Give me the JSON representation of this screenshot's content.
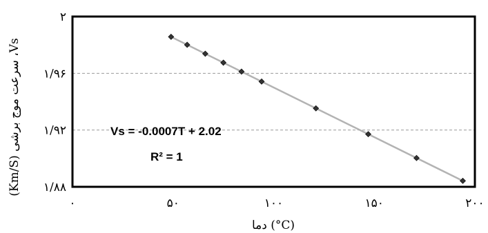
{
  "chart_data": {
    "type": "scatter",
    "xlabel": "دما (°C)",
    "ylabel": "(Km/S) سرعت موج برشی ،Vs",
    "x_ticks": [
      "۰",
      "۵۰",
      "۱۰۰",
      "۱۵۰",
      "۲۰۰"
    ],
    "y_ticks": [
      "۲",
      "۱/۹۶",
      "۱/۹۲",
      "۱/۸۸"
    ],
    "xlim": [
      0,
      200
    ],
    "ylim": [
      1.88,
      2.0
    ],
    "grid": "horizontal dashed at y ticks",
    "equation_lines": [
      "Vs = -0.0007T + 2.02",
      "R² = 1"
    ],
    "x": [
      49,
      57,
      66,
      75,
      84,
      94,
      121,
      147,
      171,
      194
    ],
    "y": [
      1.9857,
      1.9801,
      1.9738,
      1.9675,
      1.9612,
      1.9542,
      1.9353,
      1.9171,
      1.9003,
      1.8842
    ],
    "trendline": {
      "slope": -0.0007,
      "intercept": 2.02,
      "x_from": 49,
      "x_to": 194
    },
    "colors": {
      "frame": "#000000",
      "marker": "#333333",
      "trendline": "#b3b3b3",
      "grid": "#9a9a9a"
    }
  }
}
